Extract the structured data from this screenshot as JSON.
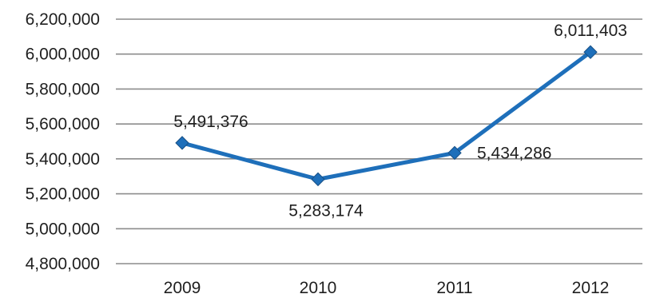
{
  "chart_data": {
    "type": "line",
    "categories": [
      "2009",
      "2010",
      "2011",
      "2012"
    ],
    "series": [
      {
        "values": [
          5491376,
          5283174,
          5434286,
          6011403
        ]
      }
    ],
    "data_labels": [
      "5,491,376",
      "5,283,174",
      "5,434,286",
      "6,011,403"
    ],
    "yticks": [
      4800000,
      5000000,
      5200000,
      5400000,
      5600000,
      5800000,
      6000000,
      6200000
    ],
    "ytick_labels": [
      "4,800,000",
      "5,000,000",
      "5,200,000",
      "5,400,000",
      "5,600,000",
      "5,800,000",
      "6,000,000",
      "6,200,000"
    ],
    "ylim": [
      4800000,
      6200000
    ],
    "grid": true,
    "line_color": "#1e6fba",
    "marker": "diamond",
    "title": "",
    "xlabel": "",
    "ylabel": ""
  }
}
